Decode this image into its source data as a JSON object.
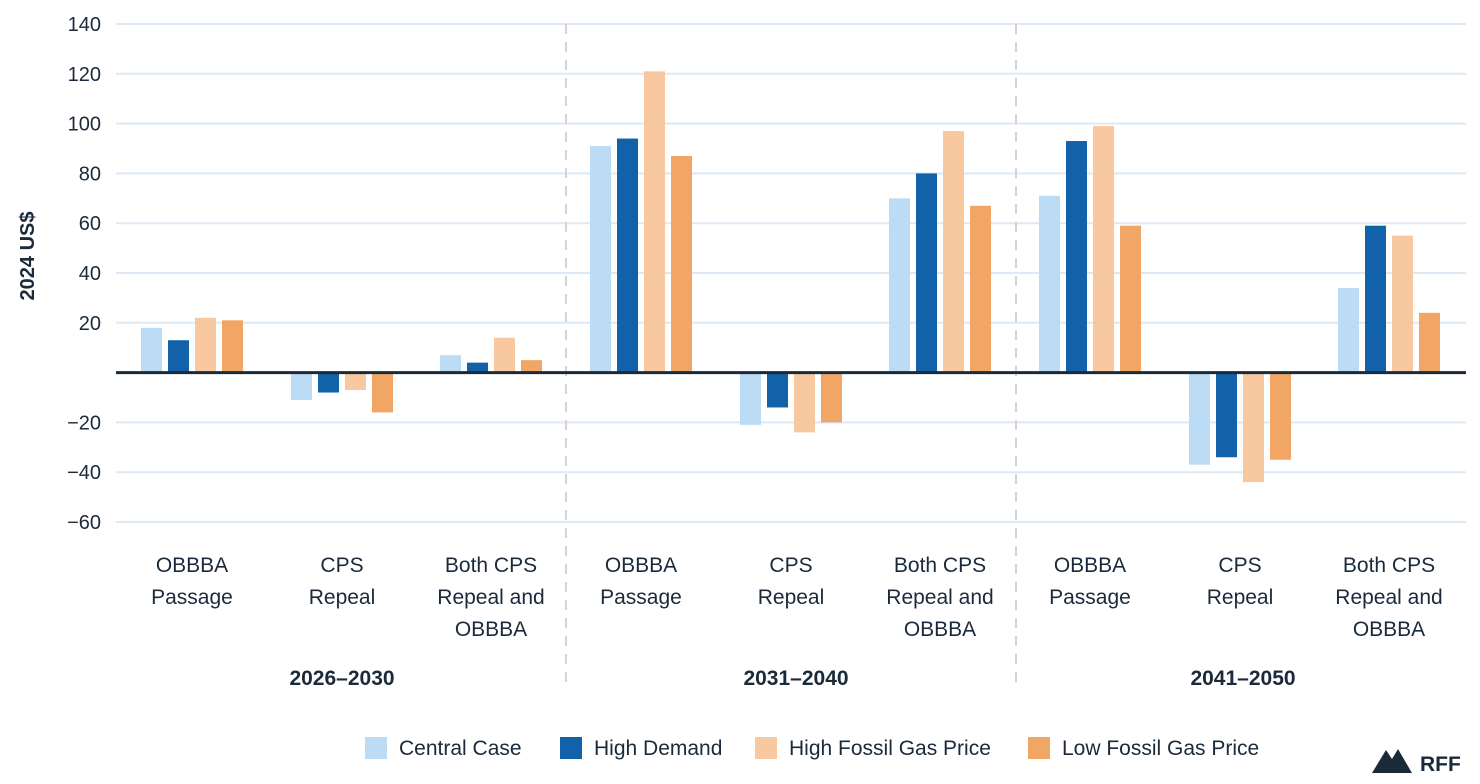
{
  "chart_data": {
    "type": "bar",
    "ylabel": "2024 US$",
    "ylim": [
      -60,
      140
    ],
    "yticks": [
      140,
      120,
      100,
      80,
      60,
      40,
      20,
      -20,
      -40,
      -60
    ],
    "ytick_labels": [
      "140",
      "120",
      "100",
      "80",
      "60",
      "40",
      "20",
      "−20",
      "−40",
      "−60"
    ],
    "grid": true,
    "groups": [
      {
        "label": "2026–2030",
        "categories": [
          {
            "lines": [
              "OBBBA",
              "Passage"
            ]
          },
          {
            "lines": [
              "CPS",
              "Repeal"
            ]
          },
          {
            "lines": [
              "Both CPS",
              "Repeal and",
              "OBBBA"
            ]
          }
        ]
      },
      {
        "label": "2031–2040",
        "categories": [
          {
            "lines": [
              "OBBBA",
              "Passage"
            ]
          },
          {
            "lines": [
              "CPS",
              "Repeal"
            ]
          },
          {
            "lines": [
              "Both CPS",
              "Repeal and",
              "OBBBA"
            ]
          }
        ]
      },
      {
        "label": "2041–2050",
        "categories": [
          {
            "lines": [
              "OBBBA",
              "Passage"
            ]
          },
          {
            "lines": [
              "CPS",
              "Repeal"
            ]
          },
          {
            "lines": [
              "Both CPS",
              "Repeal and",
              "OBBBA"
            ]
          }
        ]
      }
    ],
    "series": [
      {
        "name": "Central Case",
        "color": "#bcdcf5",
        "values": [
          18,
          -11,
          7,
          91,
          -21,
          70,
          71,
          -37,
          34
        ]
      },
      {
        "name": "High Demand",
        "color": "#1162a8",
        "values": [
          13,
          -8,
          4,
          94,
          -14,
          80,
          93,
          -34,
          59
        ]
      },
      {
        "name": "High Fossil Gas Price",
        "color": "#f8c8a0",
        "values": [
          22,
          -7,
          14,
          121,
          -24,
          97,
          99,
          -44,
          55
        ]
      },
      {
        "name": "Low Fossil Gas Price",
        "color": "#f2a666",
        "values": [
          21,
          -16,
          5,
          87,
          -20,
          67,
          59,
          -35,
          24
        ]
      }
    ],
    "legend_position": "bottom-center"
  },
  "branding": {
    "logo_text": "RFF",
    "logo_icon": "mountain-icon"
  },
  "colors": {
    "text": "#1b2a3a",
    "grid": "#dde9f5",
    "zero_line": "#1b2a3a",
    "separator": "#d4d4d4"
  }
}
